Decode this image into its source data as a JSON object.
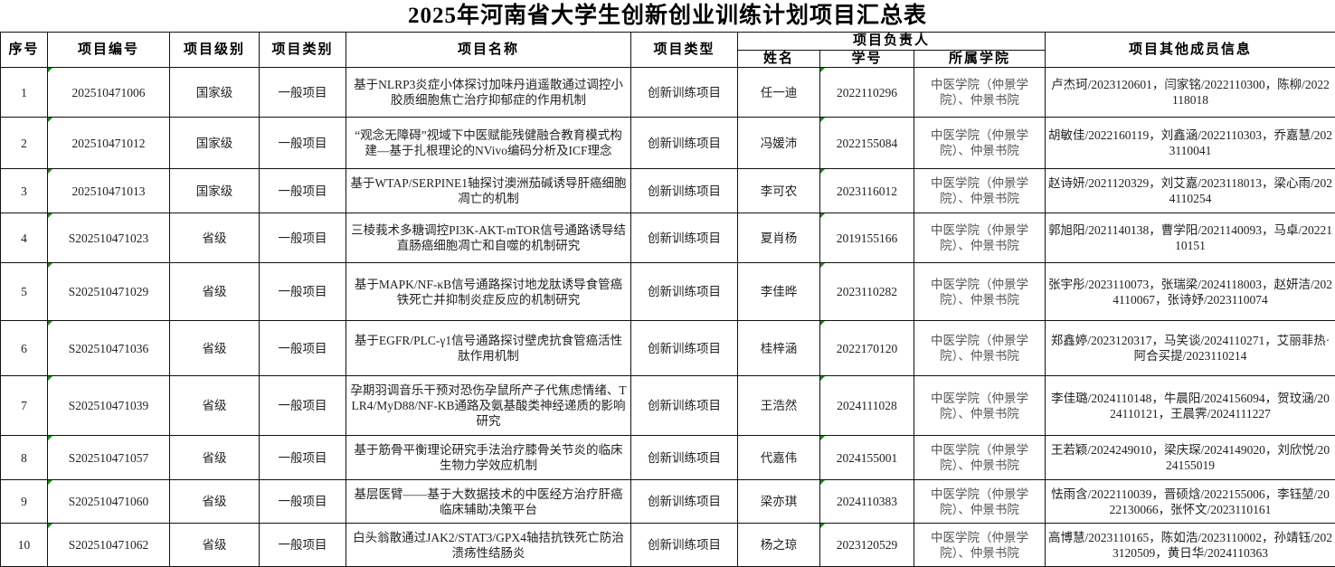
{
  "title": "2025年河南省大学生创新创业训练计划项目汇总表",
  "headers": {
    "seq": "序号",
    "code": "项目编号",
    "level": "项目级别",
    "category": "项目类别",
    "name": "项目名称",
    "type": "项目类型",
    "leader": "项目负责人",
    "leader_name": "姓名",
    "leader_id": "学号",
    "leader_college": "所属学院",
    "members": "项目其他成员信息"
  },
  "rows": [
    {
      "seq": "1",
      "code": "202510471006",
      "level": "国家级",
      "category": "一般项目",
      "name": "基于NLRP3炎症小体探讨加味丹逍遥散通过调控小胶质细胞焦亡治疗抑郁症的作用机制",
      "type": "创新训练项目",
      "leader_name": "任一迪",
      "leader_id": "2022110296",
      "college": "中医学院（仲景学院）、仲景书院",
      "members": "卢杰珂/2023120601，闫家铭/2022110300，陈柳/2022118018"
    },
    {
      "seq": "2",
      "code": "202510471012",
      "level": "国家级",
      "category": "一般项目",
      "name": "“观念无障碍”视域下中医赋能残健融合教育模式构建—基于扎根理论的NVivo编码分析及ICF理念",
      "type": "创新训练项目",
      "leader_name": "冯媛沛",
      "leader_id": "2022155084",
      "college": "中医学院（仲景学院）、仲景书院",
      "members": "胡敏佳/2022160119，刘鑫涵/2022110303，乔嘉慧/2023110041"
    },
    {
      "seq": "3",
      "code": "202510471013",
      "level": "国家级",
      "category": "一般项目",
      "name": "基于WTAP/SERPINE1轴探讨澳洲茄碱诱导肝癌细胞凋亡的机制",
      "type": "创新训练项目",
      "leader_name": "李可农",
      "leader_id": "2023116012",
      "college": "中医学院（仲景学院）、仲景书院",
      "members": "赵诗妍/2021120329，刘艾嘉/2023118013，梁心雨/2024110254"
    },
    {
      "seq": "4",
      "code": "S202510471023",
      "level": "省级",
      "category": "一般项目",
      "name": "三棱莪术多糖调控PI3K-AKT-mTOR信号通路诱导结直肠癌细胞凋亡和自噬的机制研究",
      "type": "创新训练项目",
      "leader_name": "夏肖杨",
      "leader_id": "2019155166",
      "college": "中医学院（仲景学院）、仲景书院",
      "members": "郭旭阳/2021140138，曹学阳/2021140093，马卓/2022110151"
    },
    {
      "seq": "5",
      "code": "S202510471029",
      "level": "省级",
      "category": "一般项目",
      "name": "基于MAPK/NF-κB信号通路探讨地龙肽诱导食管癌铁死亡并抑制炎症反应的机制研究",
      "type": "创新训练项目",
      "leader_name": "李佳晔",
      "leader_id": "2023110282",
      "college": "中医学院（仲景学院）、仲景书院",
      "members": "张宇彤/2023110073，张瑞梁/2024118003，赵妍洁/2024110067，张诗妤/2023110074"
    },
    {
      "seq": "6",
      "code": "S202510471036",
      "level": "省级",
      "category": "一般项目",
      "name": "基于EGFR/PLC-γ1信号通路探讨壁虎抗食管癌活性肽作用机制",
      "type": "创新训练项目",
      "leader_name": "桂梓涵",
      "leader_id": "2022170120",
      "college": "中医学院（仲景学院）、仲景书院",
      "members": "郑鑫婷/2023120317，马笑谈/2024110271，艾丽菲热·阿合买提/2023110214"
    },
    {
      "seq": "7",
      "code": "S202510471039",
      "level": "省级",
      "category": "一般项目",
      "name": "孕期羽调音乐干预对恐伤孕鼠所产子代焦虑情绪、TLR4/MyD88/NF-KB通路及氨基酸类神经递质的影响研究",
      "type": "创新训练项目",
      "leader_name": "王浩然",
      "leader_id": "2024111028",
      "college": "中医学院（仲景学院）、仲景书院",
      "members": "李佳璐/2024110148，牛晨阳/2024156094，贺玟涵/2024110121，王晨霁/2024111227"
    },
    {
      "seq": "8",
      "code": "S202510471057",
      "level": "省级",
      "category": "一般项目",
      "name": "基于筋骨平衡理论研究手法治疗膝骨关节炎的临床生物力学效应机制",
      "type": "创新训练项目",
      "leader_name": "代嘉伟",
      "leader_id": "2024155001",
      "college": "中医学院（仲景学院）、仲景书院",
      "members": "王若颖/2024249010，梁庆琛/2024149020，刘欣悦/2024155019"
    },
    {
      "seq": "9",
      "code": "S202510471060",
      "level": "省级",
      "category": "一般项目",
      "name": "基层医臂——基于大数据技术的中医经方治疗肝癌临床辅助决策平台",
      "type": "创新训练项目",
      "leader_name": "梁亦琪",
      "leader_id": "2024110383",
      "college": "中医学院（仲景学院）、仲景书院",
      "members": "怯雨含/2022110039，晋硕焓/2022155006，李钰堃/2022130066，张怀文/2023110161"
    },
    {
      "seq": "10",
      "code": "S202510471062",
      "level": "省级",
      "category": "一般项目",
      "name": "白头翁散通过JAK2/STAT3/GPX4轴拮抗铁死亡防治溃疡性结肠炎",
      "type": "创新训练项目",
      "leader_name": "杨之琼",
      "leader_id": "2023120529",
      "college": "中医学院（仲景学院）、仲景书院",
      "members": "高博慧/2023110165，陈如浩/2023110002，孙靖钰/2023120509，黄日华/2024110363"
    }
  ]
}
